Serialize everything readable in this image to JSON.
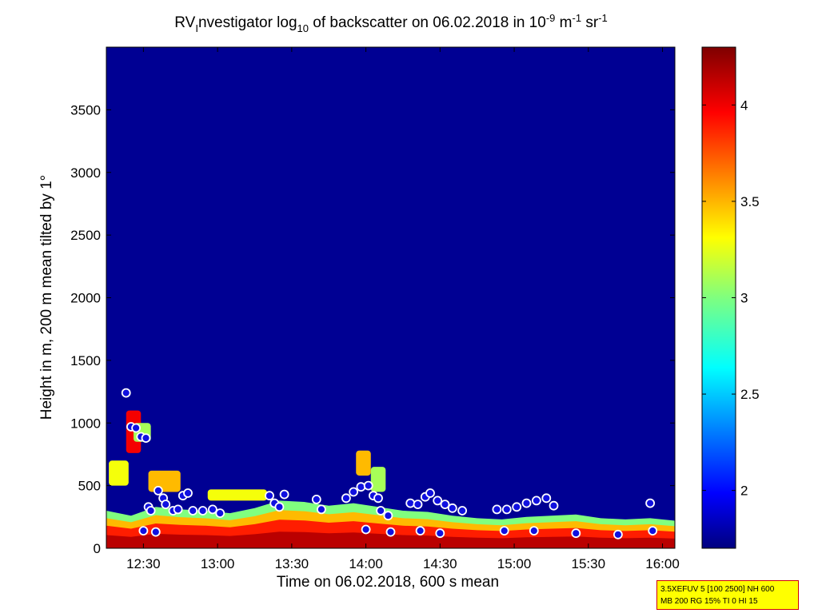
{
  "chart_data": {
    "type": "heatmap",
    "title": {
      "part1": "RV",
      "part1_sub": "I",
      "part2": "nvestigator log",
      "part2_sub": "10",
      "part3": " of backscatter on 06.02.2018 in 10",
      "part3_sup": "-9",
      "part4": " m",
      "part4_sup": "-1",
      "part5": " sr",
      "part5_sup": "-1"
    },
    "xlabel": "Time on 06.02.2018, 600 s mean",
    "ylabel": "Height in m, 200 m mean tilted by 1°",
    "x_ticks": [
      "12:30",
      "13:00",
      "13:30",
      "14:00",
      "14:30",
      "15:00",
      "15:30",
      "16:00"
    ],
    "x_tick_minutes": [
      750,
      780,
      810,
      840,
      870,
      900,
      930,
      960
    ],
    "xlim_minutes": [
      735,
      965
    ],
    "y_ticks": [
      "0",
      "500",
      "1000",
      "1500",
      "2000",
      "2500",
      "3000",
      "3500"
    ],
    "y_tick_values": [
      0,
      500,
      1000,
      1500,
      2000,
      2500,
      3000,
      3500
    ],
    "ylim": [
      0,
      4000
    ],
    "colorbar": {
      "ticks": [
        "2",
        "2.5",
        "3",
        "3.5",
        "4"
      ],
      "tick_values": [
        2,
        2.5,
        3,
        3.5,
        4
      ],
      "range": [
        1.7,
        4.3
      ],
      "colormap": "jet"
    },
    "background_value": 1.75,
    "boundary_layer_top": [
      [
        735,
        300
      ],
      [
        745,
        260
      ],
      [
        755,
        330
      ],
      [
        765,
        310
      ],
      [
        775,
        300
      ],
      [
        785,
        280
      ],
      [
        795,
        320
      ],
      [
        805,
        380
      ],
      [
        815,
        370
      ],
      [
        825,
        340
      ],
      [
        835,
        360
      ],
      [
        845,
        330
      ],
      [
        855,
        300
      ],
      [
        865,
        290
      ],
      [
        875,
        260
      ],
      [
        885,
        240
      ],
      [
        895,
        230
      ],
      [
        905,
        250
      ],
      [
        915,
        260
      ],
      [
        925,
        270
      ],
      [
        935,
        240
      ],
      [
        945,
        230
      ],
      [
        955,
        240
      ],
      [
        965,
        220
      ]
    ],
    "aerosol_layers": [
      {
        "t": [
          736,
          744
        ],
        "h": [
          500,
          700
        ],
        "value": 3.3
      },
      {
        "t": [
          743,
          749
        ],
        "h": [
          760,
          1100
        ],
        "value": 4.0
      },
      {
        "t": [
          746,
          753
        ],
        "h": [
          850,
          1000
        ],
        "value": 3.1
      },
      {
        "t": [
          752,
          765
        ],
        "h": [
          450,
          620
        ],
        "value": 3.5
      },
      {
        "t": [
          776,
          800
        ],
        "h": [
          380,
          470
        ],
        "value": 3.3
      },
      {
        "t": [
          836,
          842
        ],
        "h": [
          580,
          780
        ],
        "value": 3.5
      },
      {
        "t": [
          842,
          848
        ],
        "h": [
          450,
          650
        ],
        "value": 3.1
      }
    ],
    "cloud_base_markers": [
      [
        743,
        1240
      ],
      [
        745,
        970
      ],
      [
        747,
        960
      ],
      [
        749,
        890
      ],
      [
        751,
        880
      ],
      [
        752,
        330
      ],
      [
        753,
        300
      ],
      [
        756,
        460
      ],
      [
        758,
        400
      ],
      [
        759,
        350
      ],
      [
        762,
        300
      ],
      [
        764,
        310
      ],
      [
        766,
        420
      ],
      [
        768,
        440
      ],
      [
        770,
        300
      ],
      [
        774,
        300
      ],
      [
        778,
        310
      ],
      [
        781,
        280
      ],
      [
        801,
        420
      ],
      [
        803,
        360
      ],
      [
        805,
        330
      ],
      [
        807,
        430
      ],
      [
        820,
        390
      ],
      [
        822,
        310
      ],
      [
        832,
        400
      ],
      [
        835,
        450
      ],
      [
        838,
        490
      ],
      [
        841,
        500
      ],
      [
        843,
        420
      ],
      [
        845,
        400
      ],
      [
        846,
        300
      ],
      [
        849,
        260
      ],
      [
        858,
        360
      ],
      [
        861,
        350
      ],
      [
        864,
        410
      ],
      [
        866,
        440
      ],
      [
        869,
        380
      ],
      [
        872,
        350
      ],
      [
        875,
        320
      ],
      [
        879,
        300
      ],
      [
        893,
        310
      ],
      [
        897,
        310
      ],
      [
        901,
        330
      ],
      [
        905,
        360
      ],
      [
        909,
        380
      ],
      [
        913,
        400
      ],
      [
        916,
        340
      ],
      [
        955,
        360
      ],
      [
        956,
        140
      ],
      [
        750,
        140
      ],
      [
        755,
        130
      ],
      [
        840,
        150
      ],
      [
        850,
        130
      ],
      [
        862,
        140
      ],
      [
        870,
        120
      ],
      [
        896,
        140
      ],
      [
        908,
        140
      ],
      [
        925,
        120
      ],
      [
        942,
        110
      ]
    ],
    "grid": false
  },
  "info_box": {
    "line1": "3.5XEFUV 5 [100 2500] NH 600",
    "line2": "MB 200 RG 15% TI 0 HI 15"
  }
}
